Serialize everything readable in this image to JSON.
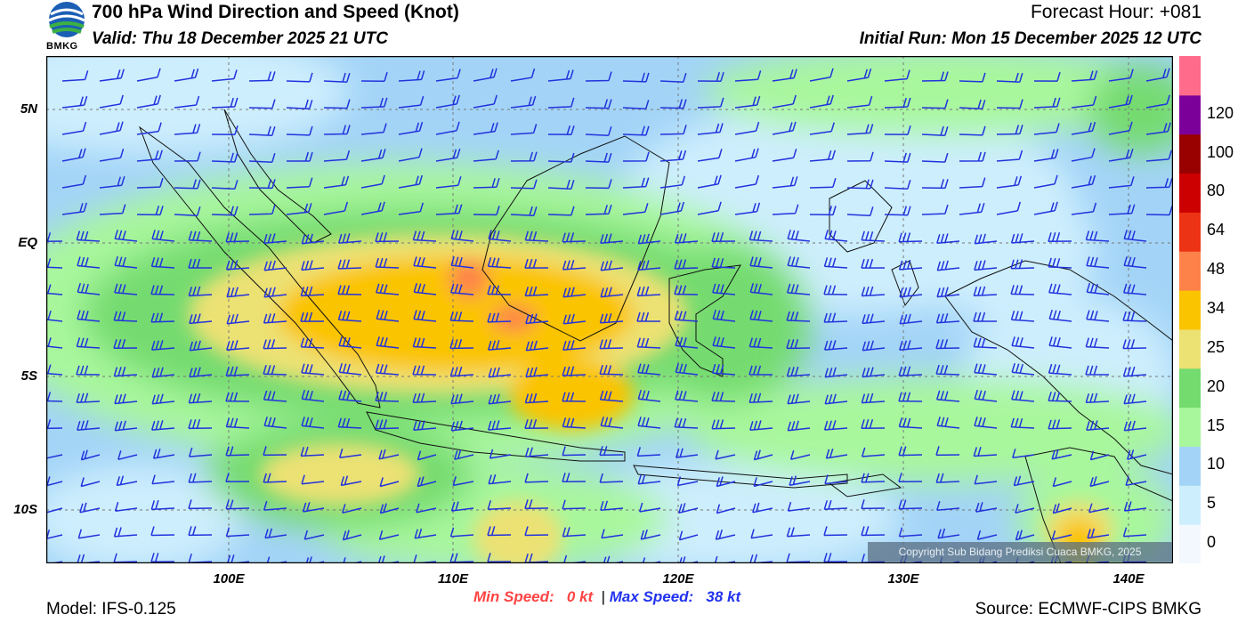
{
  "header": {
    "title": "700 hPa Wind Direction and Speed (Knot)",
    "valid": "Valid: Thu 18 December 2025 21 UTC",
    "forecast_hour": "Forecast Hour: +081",
    "initial_run": "Initial Run: Mon 15 December 2025 12 UTC",
    "logo_text": "BMKG"
  },
  "map": {
    "lat_labels": [
      "5N",
      "EQ",
      "5S",
      "10S"
    ],
    "lon_labels": [
      "100E",
      "110E",
      "120E",
      "130E",
      "140E"
    ],
    "copyright": "Copyright Sub Bidang Prediksi Cuaca BMKG, 2025"
  },
  "colorbar": {
    "labels": [
      "0",
      "5",
      "10",
      "15",
      "20",
      "25",
      "34",
      "48",
      "64",
      "80",
      "100",
      "120"
    ],
    "colors": [
      "#f2f8fe",
      "#cdeefd",
      "#a3d4f7",
      "#a8f79c",
      "#74db6f",
      "#ece173",
      "#fbc400",
      "#fd8249",
      "#ed3315",
      "#cc0000",
      "#990000",
      "#7b0099",
      "#ff6b8b"
    ]
  },
  "footer": {
    "min_label": "Min Speed:",
    "min_value": "0 kt",
    "separator": "|",
    "max_label": "Max Speed:",
    "max_value": "38 kt",
    "min_color": "#ff4444",
    "max_color": "#2233ee",
    "model": "Model: IFS-0.125",
    "source": "Source: ECMWF-CIPS BMKG"
  }
}
